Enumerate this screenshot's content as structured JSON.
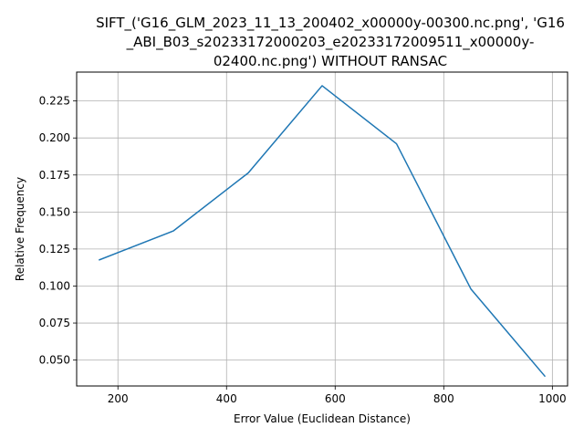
{
  "chart_data": {
    "type": "line",
    "title_lines": [
      "SIFT_('G16_GLM_2023_11_13_200402_x00000y-00300.nc.png', 'G16",
      "_ABI_B03_s20233172000203_e20233172009511_x00000y-",
      "02400.nc.png') WITHOUT RANSAC"
    ],
    "xlabel": "Error Value (Euclidean Distance)",
    "ylabel": "Relative Frequency",
    "xlim": [
      124,
      1028
    ],
    "ylim": [
      0.0325,
      0.2445
    ],
    "xticks": [
      200,
      400,
      600,
      800,
      1000
    ],
    "yticks": [
      0.05,
      0.075,
      0.1,
      0.125,
      0.15,
      0.175,
      0.2,
      0.225
    ],
    "xtick_labels": [
      "200",
      "400",
      "600",
      "800",
      "1000"
    ],
    "ytick_labels": [
      "0.050",
      "0.075",
      "0.100",
      "0.125",
      "0.150",
      "0.175",
      "0.200",
      "0.225"
    ],
    "grid": true,
    "line_color": "#1f77b4",
    "series": [
      {
        "x": [
          166,
          302,
          440,
          576,
          713,
          850,
          986
        ],
        "values": [
          0.1177,
          0.1372,
          0.1764,
          0.2353,
          0.1961,
          0.098,
          0.0392
        ]
      }
    ]
  }
}
